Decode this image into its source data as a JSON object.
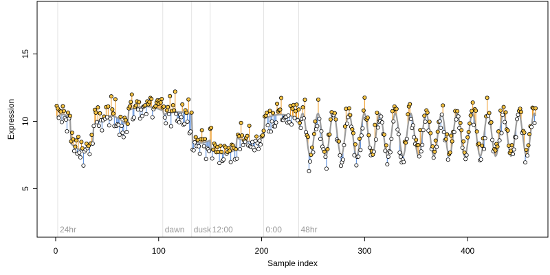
{
  "chart_data": {
    "type": "scatter",
    "xlabel": "Sample index",
    "ylabel": "Expression",
    "xlim": [
      -18,
      478
    ],
    "ylim": [
      1.4,
      18.9
    ],
    "x_ticks": [
      0,
      100,
      200,
      300,
      400
    ],
    "y_ticks": [
      5,
      10,
      15
    ],
    "grid": false,
    "phase_markers": [
      {
        "label": "24hr",
        "x": 2
      },
      {
        "label": "dawn",
        "x": 104
      },
      {
        "label": "dusk",
        "x": 132
      },
      {
        "label": "12:00",
        "x": 150
      },
      {
        "label": "0:00",
        "x": 202
      },
      {
        "label": "48hr",
        "x": 236
      }
    ],
    "segments": [
      {
        "x_start": 0,
        "x_end": 14,
        "mean": 10.3,
        "amp": 0.2,
        "period": 0
      },
      {
        "x_start": 14,
        "x_end": 36,
        "mean": 8.4,
        "amp": 0.5,
        "period": 0
      },
      {
        "x_start": 36,
        "x_end": 70,
        "mean": 9.7,
        "amp": 0.7,
        "period": 0
      },
      {
        "x_start": 70,
        "x_end": 104,
        "mean": 10.8,
        "amp": 0.3,
        "period": 0
      },
      {
        "x_start": 104,
        "x_end": 132,
        "mean": 10.5,
        "amp": 0.2,
        "period": 0
      },
      {
        "x_start": 132,
        "x_end": 150,
        "mean": 8.6,
        "amp": 0.2,
        "period": 0
      },
      {
        "x_start": 150,
        "x_end": 175,
        "mean": 7.9,
        "amp": 0.3,
        "period": 0
      },
      {
        "x_start": 175,
        "x_end": 202,
        "mean": 8.8,
        "amp": 0.3,
        "period": 0
      },
      {
        "x_start": 202,
        "x_end": 236,
        "mean": 10.2,
        "amp": 0.3,
        "period": 0
      },
      {
        "x_start": 236,
        "x_end": 466,
        "mean": 9.0,
        "amp": 1.6,
        "period": 15
      }
    ],
    "noise_sd": 0.75,
    "n_points": 466,
    "colors": {
      "point_fill": "#f5c242",
      "above": "#f0a030",
      "below": "#5b8fde",
      "fit_line": "#9c9c9c",
      "phase_line": "#e2e2e2",
      "axis": "#000000"
    }
  }
}
